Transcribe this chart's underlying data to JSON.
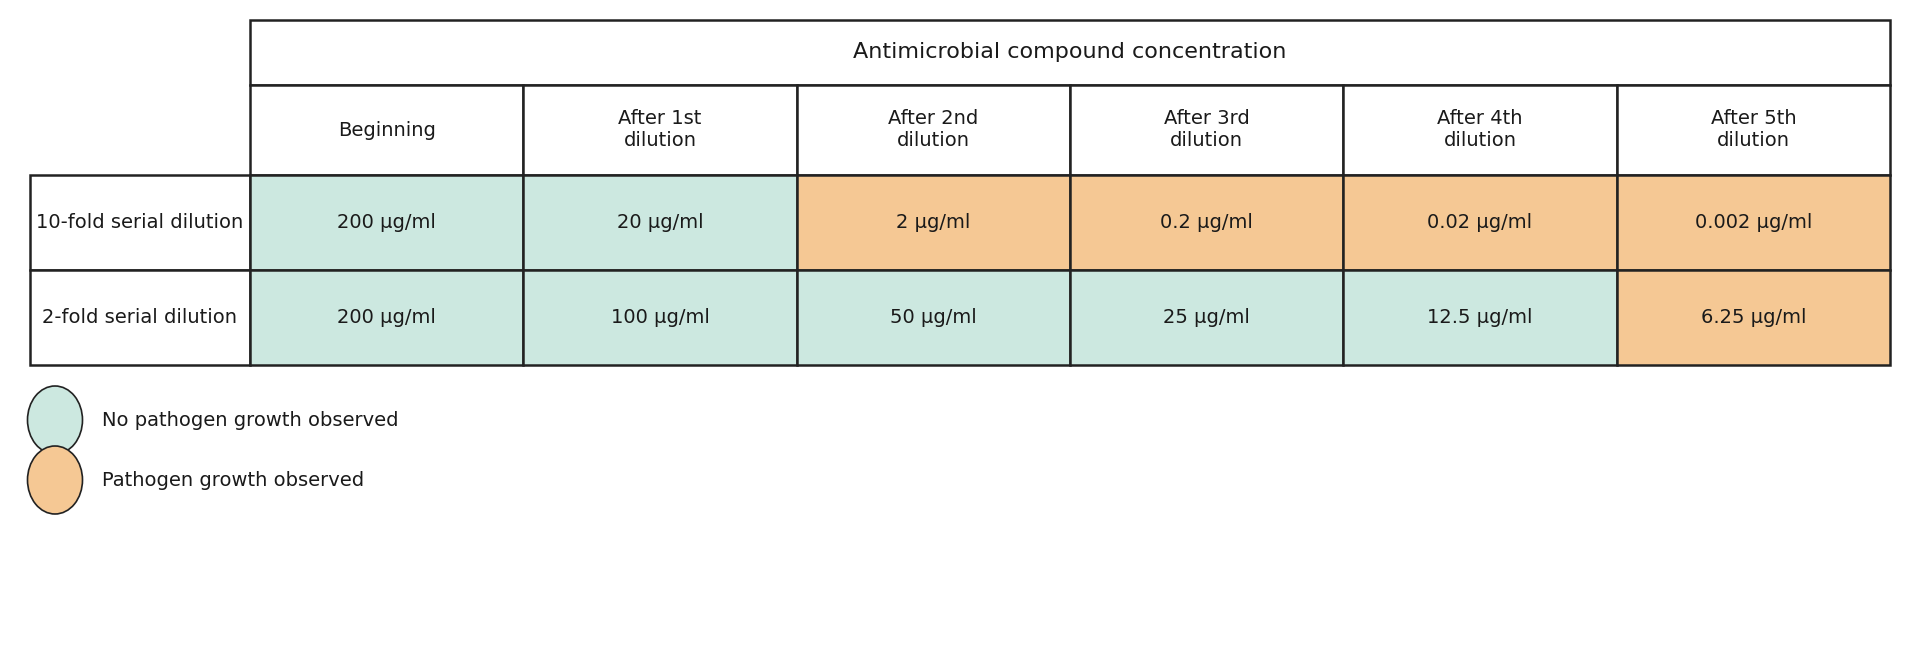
{
  "title": "Antimicrobial compound concentration",
  "col_headers": [
    "Beginning",
    "After 1st\ndilution",
    "After 2nd\ndilution",
    "After 3rd\ndilution",
    "After 4th\ndilution",
    "After 5th\ndilution"
  ],
  "row_labels": [
    "10-fold serial dilution",
    "2-fold serial dilution"
  ],
  "cell_values": [
    [
      "200 μg/ml",
      "20 μg/ml",
      "2 μg/ml",
      "0.2 μg/ml",
      "0.02 μg/ml",
      "0.002 μg/ml"
    ],
    [
      "200 μg/ml",
      "100 μg/ml",
      "50 μg/ml",
      "25 μg/ml",
      "12.5 μg/ml",
      "6.25 μg/ml"
    ]
  ],
  "cell_colors": [
    [
      "#cce8e0",
      "#cce8e0",
      "#f5c894",
      "#f5c894",
      "#f5c894",
      "#f5c894"
    ],
    [
      "#cce8e0",
      "#cce8e0",
      "#cce8e0",
      "#cce8e0",
      "#cce8e0",
      "#f5c894"
    ]
  ],
  "legend_items": [
    {
      "color": "#cce8e0",
      "label": "No pathogen growth observed"
    },
    {
      "color": "#f5c894",
      "label": "Pathogen growth observed"
    }
  ],
  "bg_color": "#ffffff",
  "border_color": "#222222",
  "header_bg": "#ffffff",
  "title_fontsize": 16,
  "cell_fontsize": 14,
  "label_fontsize": 14,
  "legend_fontsize": 14,
  "fig_width": 19.2,
  "fig_height": 6.64,
  "dpi": 100
}
